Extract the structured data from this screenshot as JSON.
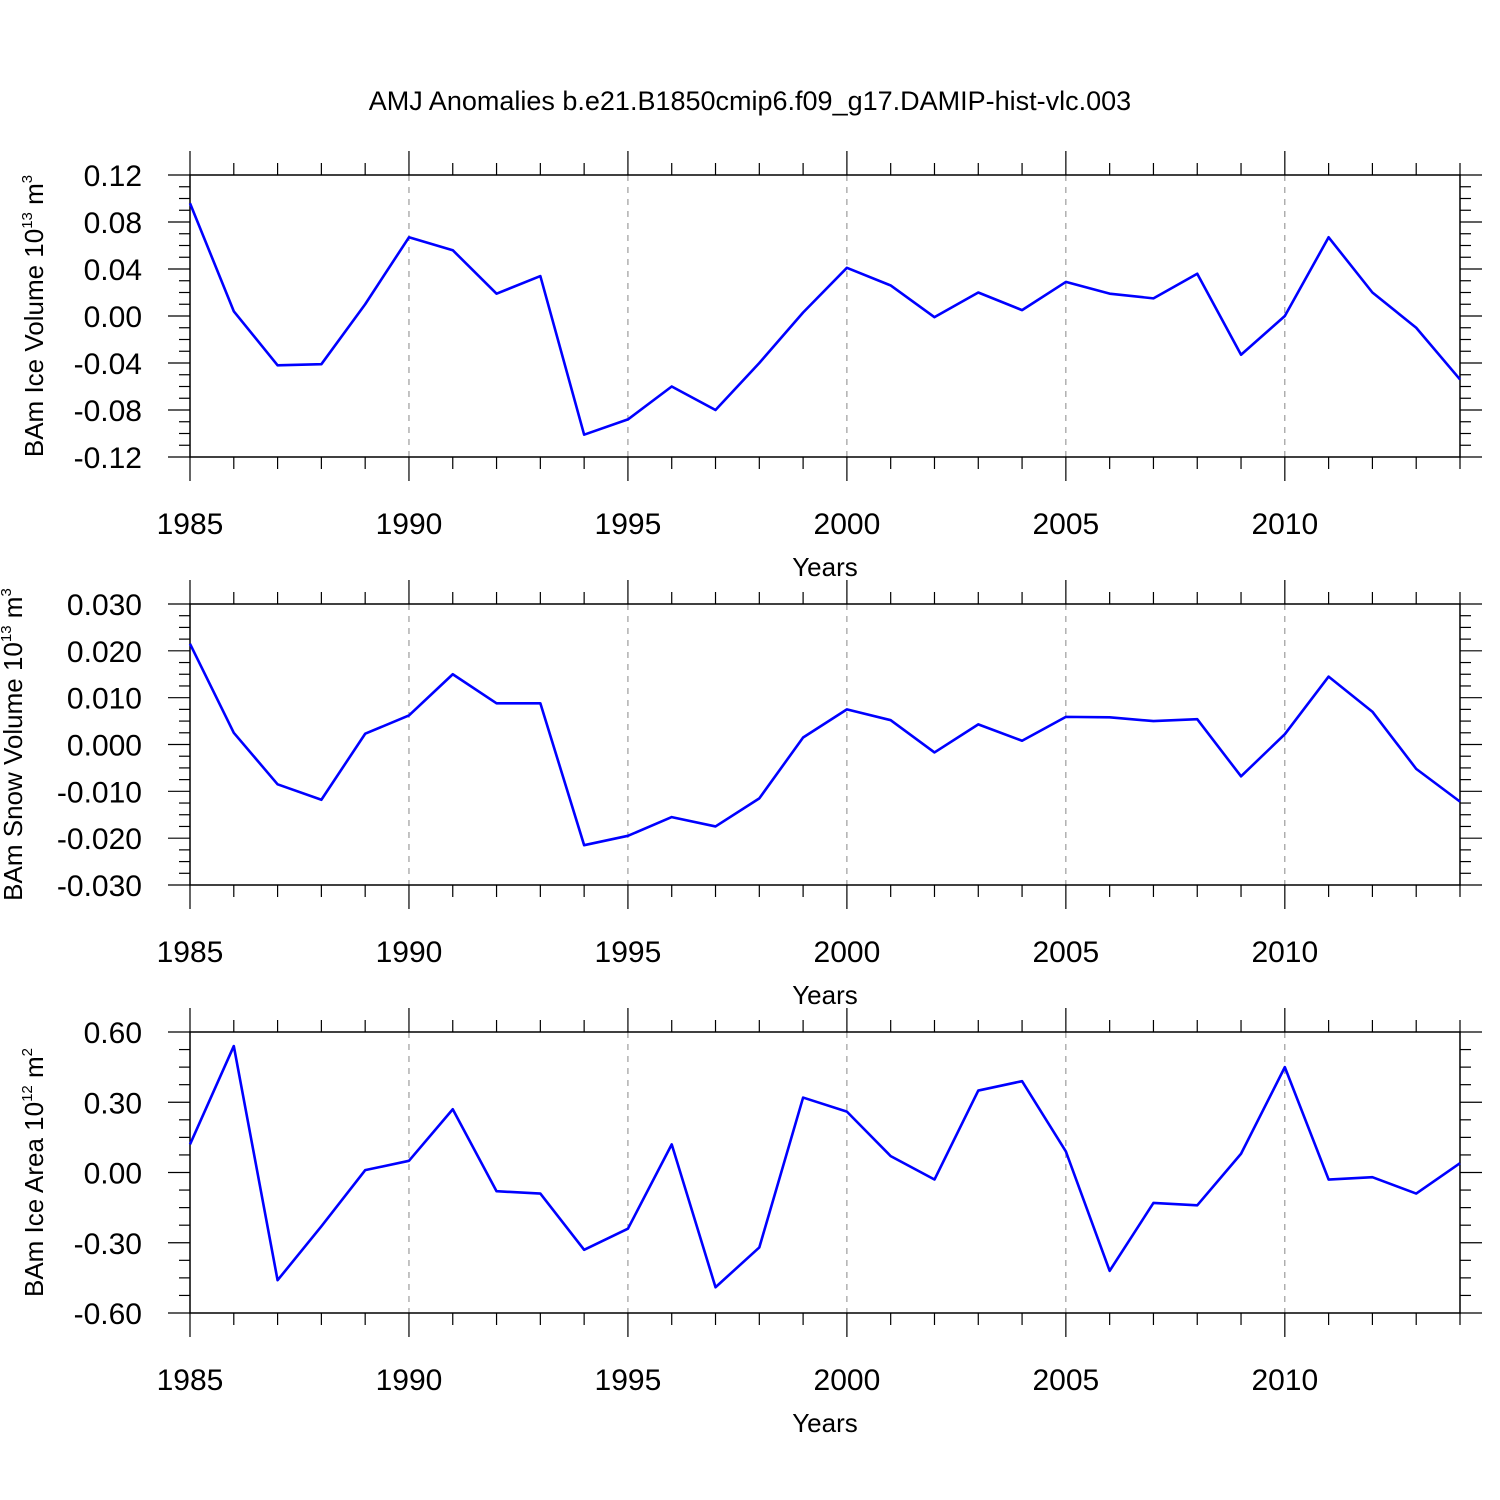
{
  "figure": {
    "title": "AMJ Anomalies b.e21.B1850cmip6.f09_g17.DAMIP-hist-vlc.003",
    "line_color": "#0000ff",
    "grid_color": "#888888"
  },
  "chart_data": [
    {
      "type": "line",
      "title": "",
      "xlabel": "Years",
      "ylabel": {
        "main": "BAm Ice Volume 10",
        "exp": "13",
        "unit": " m",
        "unit_exp": "3"
      },
      "x": [
        1985,
        1986,
        1987,
        1988,
        1989,
        1990,
        1991,
        1992,
        1993,
        1994,
        1995,
        1996,
        1997,
        1998,
        1999,
        2000,
        2001,
        2002,
        2003,
        2004,
        2005,
        2006,
        2007,
        2008,
        2009,
        2010,
        2011,
        2012,
        2013,
        2014
      ],
      "series": [
        {
          "values": [
            0.096,
            0.004,
            -0.042,
            -0.041,
            0.01,
            0.067,
            0.056,
            0.019,
            0.034,
            -0.101,
            -0.088,
            -0.06,
            -0.08,
            -0.04,
            0.003,
            0.041,
            0.026,
            -0.001,
            0.02,
            0.005,
            0.029,
            0.019,
            0.015,
            0.036,
            -0.033,
            0.0,
            0.067,
            0.02,
            -0.01,
            -0.054
          ]
        }
      ],
      "xlim": [
        1985,
        2014
      ],
      "ylim": [
        -0.12,
        0.12
      ],
      "xticks": [
        "1985",
        "1990",
        "1995",
        "2000",
        "2005",
        "2010"
      ],
      "yticks": [
        "0.12",
        "0.08",
        "0.04",
        "0.00",
        "-0.04",
        "-0.08",
        "-0.12"
      ],
      "ytick_values": [
        0.12,
        0.08,
        0.04,
        0.0,
        -0.04,
        -0.08,
        -0.12
      ],
      "grid": "vertical dashed at major x ticks"
    },
    {
      "type": "line",
      "title": "",
      "xlabel": "Years",
      "ylabel": {
        "main": "BAm Snow Volume 10",
        "exp": "13",
        "unit": " m",
        "unit_exp": "3"
      },
      "x": [
        1985,
        1986,
        1987,
        1988,
        1989,
        1990,
        1991,
        1992,
        1993,
        1994,
        1995,
        1996,
        1997,
        1998,
        1999,
        2000,
        2001,
        2002,
        2003,
        2004,
        2005,
        2006,
        2007,
        2008,
        2009,
        2010,
        2011,
        2012,
        2013,
        2014
      ],
      "series": [
        {
          "values": [
            0.0215,
            0.0025,
            -0.0085,
            -0.0118,
            0.0023,
            0.0062,
            0.015,
            0.0088,
            0.0088,
            -0.0215,
            -0.0195,
            -0.0155,
            -0.0175,
            -0.0115,
            0.0015,
            0.0075,
            0.0052,
            -0.0017,
            0.0043,
            0.0008,
            0.0059,
            0.0058,
            0.005,
            0.0054,
            -0.0068,
            0.0022,
            0.0145,
            0.007,
            -0.0052,
            -0.0122
          ]
        }
      ],
      "xlim": [
        1985,
        2014
      ],
      "ylim": [
        -0.03,
        0.03
      ],
      "xticks": [
        "1985",
        "1990",
        "1995",
        "2000",
        "2005",
        "2010"
      ],
      "yticks": [
        "0.030",
        "0.020",
        "0.010",
        "0.000",
        "-0.010",
        "-0.020",
        "-0.030"
      ],
      "ytick_values": [
        0.03,
        0.02,
        0.01,
        0.0,
        -0.01,
        -0.02,
        -0.03
      ],
      "grid": "vertical dashed at major x ticks"
    },
    {
      "type": "line",
      "title": "",
      "xlabel": "Years",
      "ylabel": {
        "main": "BAm Ice Area 10",
        "exp": "12",
        "unit": " m",
        "unit_exp": "2"
      },
      "x": [
        1985,
        1986,
        1987,
        1988,
        1989,
        1990,
        1991,
        1992,
        1993,
        1994,
        1995,
        1996,
        1997,
        1998,
        1999,
        2000,
        2001,
        2002,
        2003,
        2004,
        2005,
        2006,
        2007,
        2008,
        2009,
        2010,
        2011,
        2012,
        2013,
        2014
      ],
      "series": [
        {
          "values": [
            0.12,
            0.54,
            -0.46,
            -0.23,
            0.01,
            0.05,
            0.27,
            -0.08,
            -0.09,
            -0.33,
            -0.24,
            0.12,
            -0.49,
            -0.32,
            0.32,
            0.26,
            0.07,
            -0.03,
            0.35,
            0.39,
            0.09,
            -0.42,
            -0.13,
            -0.14,
            0.08,
            0.45,
            -0.03,
            -0.02,
            -0.09,
            0.04
          ]
        }
      ],
      "xlim": [
        1985,
        2014
      ],
      "ylim": [
        -0.6,
        0.6
      ],
      "xticks": [
        "1985",
        "1990",
        "1995",
        "2000",
        "2005",
        "2010"
      ],
      "yticks": [
        "0.60",
        "0.30",
        "0.00",
        "-0.30",
        "-0.60"
      ],
      "ytick_values": [
        0.6,
        0.3,
        0.0,
        -0.3,
        -0.6
      ],
      "grid": "vertical dashed at major x ticks"
    }
  ]
}
